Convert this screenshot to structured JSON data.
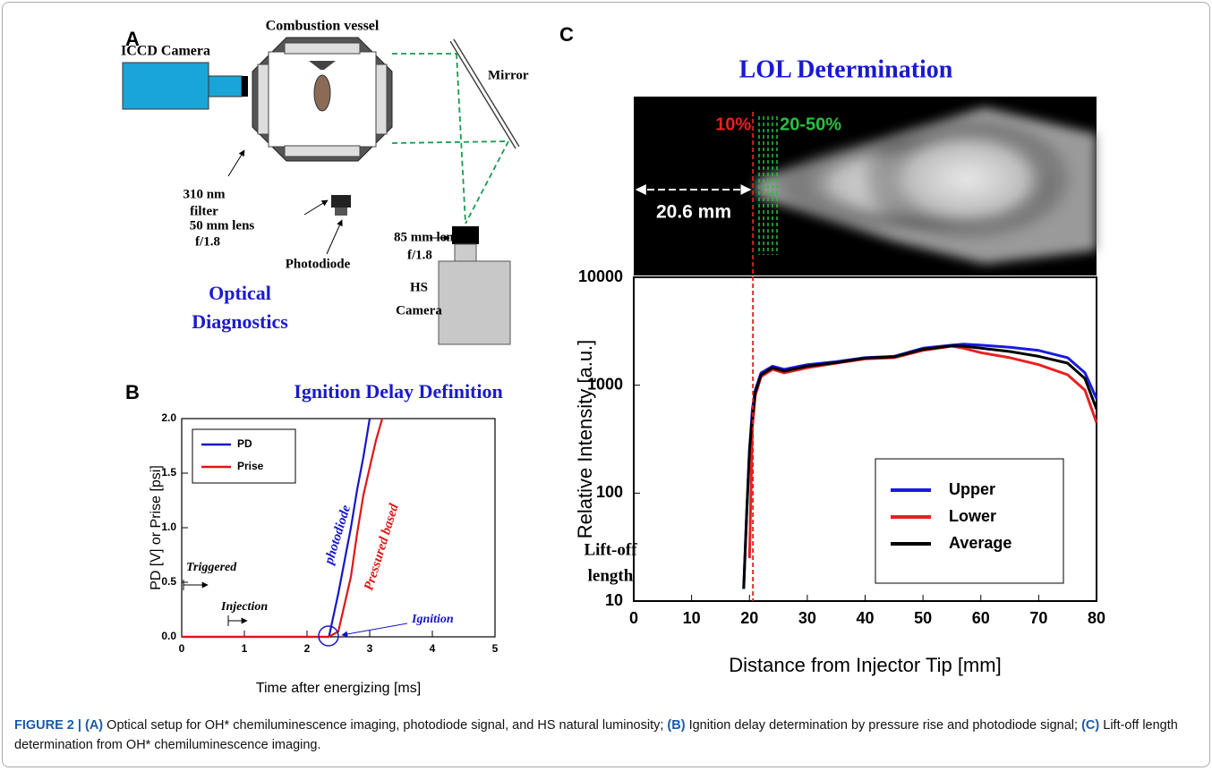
{
  "panel_a": {
    "label": "A",
    "vessel": "Combustion vessel",
    "iccd": "ICCD Camera",
    "mirror": "Mirror",
    "filter": [
      "310 nm",
      "filter"
    ],
    "lens50": [
      "50 mm lens",
      "f/1.8"
    ],
    "photodiode": "Photodiode",
    "lens85": [
      "85 mm lens",
      "f/1.8"
    ],
    "hs": [
      "HS",
      "Camera"
    ],
    "heading": [
      "Optical",
      "Diagnostics"
    ]
  },
  "chart_data": [
    {
      "type": "line",
      "panel": "B",
      "title": "Ignition Delay Definition",
      "x_label": "Time after energizing [ms]",
      "y_label": "PD [V] or Prise [psi]",
      "x": [
        0,
        0.5,
        1,
        1.5,
        2,
        2.35,
        2.5,
        2.6,
        2.7,
        2.8,
        2.9,
        3.0,
        3.1,
        3.2
      ],
      "series": [
        {
          "name": "PD",
          "color": "#1515c8",
          "values": [
            0,
            0,
            0,
            0,
            0,
            0,
            0.4,
            0.7,
            1.0,
            1.35,
            1.65,
            2.0,
            null,
            null
          ]
        },
        {
          "name": "Prise",
          "color": "#e01515",
          "values": [
            0,
            0,
            0,
            0,
            0,
            0,
            0.05,
            0.3,
            0.55,
            0.95,
            1.3,
            1.55,
            1.8,
            2.0
          ]
        }
      ],
      "xlim": [
        0,
        5
      ],
      "xticks": [
        0,
        1,
        2,
        3,
        4,
        5
      ],
      "ylim": [
        0,
        2
      ],
      "yticks": [
        {
          "value": 0,
          "label": "0.0"
        },
        {
          "value": 0.5,
          "label": "0.5"
        },
        {
          "value": 1,
          "label": "1.0"
        },
        {
          "value": 1.5,
          "label": "1.5"
        },
        {
          "value": 2,
          "label": "2.0"
        }
      ],
      "legend": "upper-left",
      "annotations": [
        "Triggered",
        "Injection",
        "photodiode",
        "Pressured based",
        "Ignition"
      ]
    },
    {
      "type": "line",
      "panel": "C",
      "title": "LOL Determination",
      "x_label": "Distance from Injector Tip [mm]",
      "y_label": "Relative Intensity [a.u.]",
      "log_y": true,
      "x": [
        19,
        19.5,
        20,
        20.5,
        21,
        22,
        24,
        26,
        30,
        35,
        40,
        45,
        50,
        55,
        57,
        60,
        65,
        70,
        75,
        78,
        80
      ],
      "series": [
        {
          "name": "Upper",
          "color": "#1a1ae0",
          "values": [
            13,
            60,
            250,
            600,
            900,
            1300,
            1500,
            1400,
            1550,
            1650,
            1800,
            1850,
            2200,
            2350,
            2400,
            2350,
            2250,
            2100,
            1800,
            1300,
            750
          ]
        },
        {
          "name": "Lower",
          "color": "#e82020",
          "values": [
            null,
            null,
            25,
            400,
            800,
            1200,
            1400,
            1300,
            1450,
            1600,
            1750,
            1800,
            2100,
            2300,
            2200,
            2000,
            1800,
            1550,
            1250,
            900,
            450
          ]
        },
        {
          "name": "Average",
          "color": "#000000",
          "values": [
            13,
            60,
            250,
            500,
            850,
            1250,
            1450,
            1350,
            1500,
            1620,
            1780,
            1830,
            2150,
            2320,
            2300,
            2200,
            2050,
            1850,
            1600,
            1150,
            600
          ]
        }
      ],
      "xlim": [
        0,
        80
      ],
      "xticks": [
        0,
        10,
        20,
        30,
        40,
        50,
        60,
        70,
        80
      ],
      "ylim": [
        10,
        10000
      ],
      "yticks": [
        10,
        100,
        1000,
        10000
      ],
      "legend": "lower-right",
      "image_labels": {
        "red": "10%",
        "green": "20-50%"
      },
      "lift_off": {
        "value": 20.6,
        "label": "20.6 mm"
      },
      "annotations": [
        "Lift-off",
        "length"
      ]
    }
  ],
  "caption": [
    {
      "text": "FIGURE 2 | ",
      "bold": true
    },
    {
      "text": "(A)",
      "bold": true
    },
    {
      "text": " Optical setup for OH* chemiluminescence imaging, photodiode signal, and HS natural luminosity; ",
      "bold": false
    },
    {
      "text": "(B)",
      "bold": true
    },
    {
      "text": " Ignition delay determination by pressure rise and photodiode signal; ",
      "bold": false
    },
    {
      "text": "(C)",
      "bold": true
    },
    {
      "text": " Lift-off length determination from OH* chemiluminescence imaging.",
      "bold": false
    }
  ]
}
